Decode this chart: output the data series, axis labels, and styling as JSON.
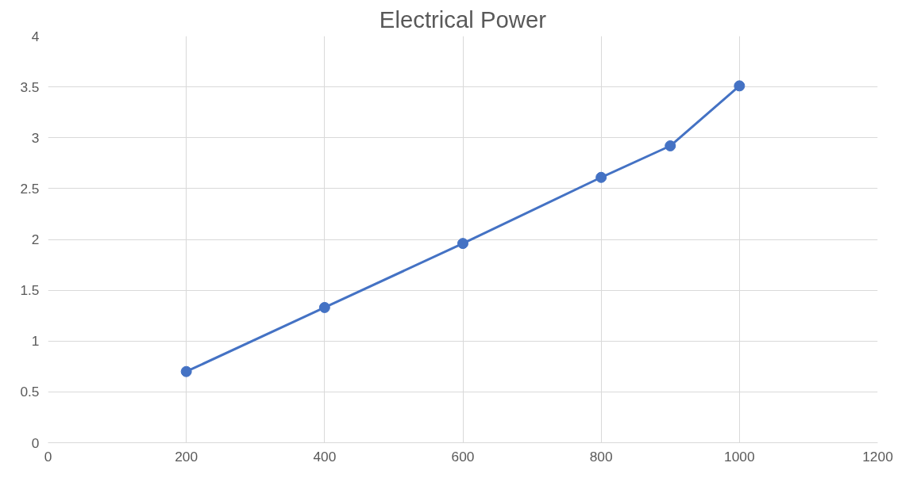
{
  "chart_data": {
    "type": "line",
    "title": "Electrical Power",
    "x": [
      200,
      400,
      600,
      800,
      900,
      1000
    ],
    "series": [
      {
        "color": "#4472c4",
        "values": [
          0.7,
          1.33,
          1.96,
          2.61,
          2.92,
          3.51
        ]
      }
    ],
    "xlim": [
      0,
      1200
    ],
    "xticks": [
      0,
      200,
      400,
      600,
      800,
      1000,
      1200
    ],
    "ylim": [
      0,
      4
    ],
    "yticks": [
      0,
      0.5,
      1,
      1.5,
      2,
      2.5,
      3,
      3.5,
      4
    ],
    "grid": true,
    "marker": "circle",
    "line_style": "solid"
  }
}
